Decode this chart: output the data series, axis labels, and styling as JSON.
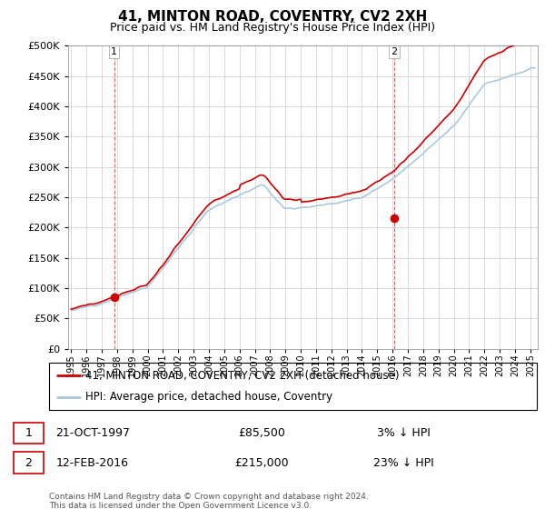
{
  "title": "41, MINTON ROAD, COVENTRY, CV2 2XH",
  "subtitle": "Price paid vs. HM Land Registry's House Price Index (HPI)",
  "legend_line1": "41, MINTON ROAD, COVENTRY, CV2 2XH (detached house)",
  "legend_line2": "HPI: Average price, detached house, Coventry",
  "transaction1_date": "21-OCT-1997",
  "transaction1_price": "£85,500",
  "transaction1_hpi": "3% ↓ HPI",
  "transaction2_date": "12-FEB-2016",
  "transaction2_price": "£215,000",
  "transaction2_hpi": "23% ↓ HPI",
  "footer": "Contains HM Land Registry data © Crown copyright and database right 2024.\nThis data is licensed under the Open Government Licence v3.0.",
  "hpi_color": "#aac8e0",
  "price_color": "#cc0000",
  "dot_color": "#cc0000",
  "vline_color": "#cc4444",
  "ylim": [
    0,
    500000
  ],
  "yticks": [
    0,
    50000,
    100000,
    150000,
    200000,
    250000,
    300000,
    350000,
    400000,
    450000,
    500000
  ],
  "xlim_start": 1994.8,
  "xlim_end": 2025.5,
  "transaction1_x": 1997.8,
  "transaction1_y": 85500,
  "transaction2_x": 2016.1,
  "transaction2_y": 215000,
  "background_color": "#ffffff",
  "grid_color": "#cccccc"
}
